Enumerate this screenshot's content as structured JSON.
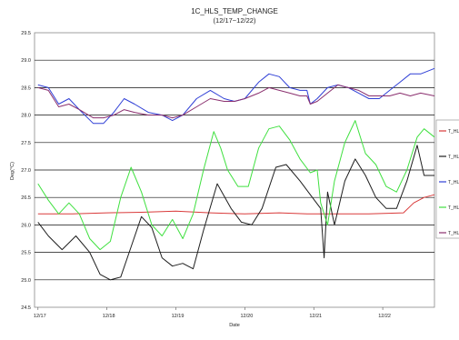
{
  "chart_data": {
    "type": "line",
    "title": "1C_HLS_TEMP_CHANGE",
    "subtitle": "(12/17~12/22)",
    "xlabel": "Date",
    "ylabel": "Deg(°C)",
    "x_tick_labels": [
      "12/17",
      "12/18",
      "12/19",
      "12/20",
      "12/21",
      "12/22"
    ],
    "x_ticks": [
      0,
      1,
      2,
      3,
      4,
      5
    ],
    "xlim": [
      -0.05,
      5.75
    ],
    "ylim": [
      24.5,
      29.5
    ],
    "y_ticks": [
      "24.5",
      "25.0",
      "25.5",
      "26.0",
      "26.5",
      "27.0",
      "27.5",
      "28.0",
      "28.5",
      "29.0",
      "29.5"
    ],
    "grid": "horizontal",
    "legend_position": "right",
    "series": [
      {
        "name": "T_HLS",
        "color": "#d93a3a",
        "points": [
          [
            0.0,
            26.2
          ],
          [
            0.5,
            26.2
          ],
          [
            1.0,
            26.22
          ],
          [
            1.5,
            26.23
          ],
          [
            2.0,
            26.25
          ],
          [
            2.5,
            26.22
          ],
          [
            3.0,
            26.2
          ],
          [
            3.5,
            26.22
          ],
          [
            3.9,
            26.2
          ],
          [
            4.3,
            26.2
          ],
          [
            4.8,
            26.2
          ],
          [
            5.3,
            26.22
          ],
          [
            5.45,
            26.4
          ],
          [
            5.6,
            26.5
          ],
          [
            5.75,
            26.55
          ]
        ]
      },
      {
        "name": "T_HLS",
        "color": "#1e1e1e",
        "points": [
          [
            0.0,
            26.05
          ],
          [
            0.15,
            25.8
          ],
          [
            0.35,
            25.55
          ],
          [
            0.55,
            25.8
          ],
          [
            0.75,
            25.5
          ],
          [
            0.9,
            25.1
          ],
          [
            1.05,
            25.0
          ],
          [
            1.2,
            25.05
          ],
          [
            1.35,
            25.6
          ],
          [
            1.5,
            26.15
          ],
          [
            1.65,
            25.95
          ],
          [
            1.8,
            25.4
          ],
          [
            1.95,
            25.25
          ],
          [
            2.1,
            25.3
          ],
          [
            2.25,
            25.2
          ],
          [
            2.4,
            25.9
          ],
          [
            2.6,
            26.75
          ],
          [
            2.8,
            26.3
          ],
          [
            2.95,
            26.05
          ],
          [
            3.1,
            26.0
          ],
          [
            3.25,
            26.3
          ],
          [
            3.45,
            27.05
          ],
          [
            3.6,
            27.1
          ],
          [
            3.8,
            26.8
          ],
          [
            3.95,
            26.55
          ],
          [
            4.1,
            26.3
          ],
          [
            4.15,
            25.4
          ],
          [
            4.2,
            26.6
          ],
          [
            4.3,
            26.0
          ],
          [
            4.45,
            26.8
          ],
          [
            4.6,
            27.2
          ],
          [
            4.75,
            26.9
          ],
          [
            4.9,
            26.5
          ],
          [
            5.05,
            26.3
          ],
          [
            5.2,
            26.3
          ],
          [
            5.35,
            26.8
          ],
          [
            5.5,
            27.45
          ],
          [
            5.6,
            26.9
          ],
          [
            5.75,
            26.9
          ]
        ]
      },
      {
        "name": "T_HLS",
        "color": "#2f3fd6",
        "points": [
          [
            0.0,
            28.55
          ],
          [
            0.15,
            28.5
          ],
          [
            0.3,
            28.2
          ],
          [
            0.45,
            28.3
          ],
          [
            0.6,
            28.1
          ],
          [
            0.8,
            27.85
          ],
          [
            0.95,
            27.85
          ],
          [
            1.1,
            28.05
          ],
          [
            1.25,
            28.3
          ],
          [
            1.4,
            28.2
          ],
          [
            1.6,
            28.05
          ],
          [
            1.8,
            28.0
          ],
          [
            1.95,
            27.9
          ],
          [
            2.1,
            28.0
          ],
          [
            2.3,
            28.3
          ],
          [
            2.5,
            28.45
          ],
          [
            2.7,
            28.3
          ],
          [
            2.85,
            28.25
          ],
          [
            3.0,
            28.3
          ],
          [
            3.2,
            28.6
          ],
          [
            3.35,
            28.75
          ],
          [
            3.5,
            28.7
          ],
          [
            3.65,
            28.5
          ],
          [
            3.8,
            28.45
          ],
          [
            3.9,
            28.45
          ],
          [
            3.95,
            28.2
          ],
          [
            4.05,
            28.3
          ],
          [
            4.2,
            28.5
          ],
          [
            4.35,
            28.55
          ],
          [
            4.5,
            28.5
          ],
          [
            4.65,
            28.4
          ],
          [
            4.8,
            28.3
          ],
          [
            4.95,
            28.3
          ],
          [
            5.1,
            28.45
          ],
          [
            5.25,
            28.6
          ],
          [
            5.4,
            28.75
          ],
          [
            5.55,
            28.75
          ],
          [
            5.75,
            28.85
          ]
        ]
      },
      {
        "name": "T_HLS",
        "color": "#3fe03f",
        "points": [
          [
            0.0,
            26.75
          ],
          [
            0.15,
            26.45
          ],
          [
            0.3,
            26.2
          ],
          [
            0.45,
            26.4
          ],
          [
            0.6,
            26.2
          ],
          [
            0.75,
            25.75
          ],
          [
            0.9,
            25.55
          ],
          [
            1.05,
            25.7
          ],
          [
            1.2,
            26.5
          ],
          [
            1.35,
            27.05
          ],
          [
            1.5,
            26.6
          ],
          [
            1.65,
            26.0
          ],
          [
            1.8,
            25.8
          ],
          [
            1.95,
            26.1
          ],
          [
            2.1,
            25.75
          ],
          [
            2.25,
            26.2
          ],
          [
            2.4,
            27.0
          ],
          [
            2.55,
            27.7
          ],
          [
            2.65,
            27.4
          ],
          [
            2.75,
            27.0
          ],
          [
            2.9,
            26.7
          ],
          [
            3.05,
            26.7
          ],
          [
            3.2,
            27.4
          ],
          [
            3.35,
            27.75
          ],
          [
            3.5,
            27.8
          ],
          [
            3.65,
            27.55
          ],
          [
            3.8,
            27.2
          ],
          [
            3.95,
            26.95
          ],
          [
            4.05,
            27.0
          ],
          [
            4.1,
            26.4
          ],
          [
            4.2,
            26.0
          ],
          [
            4.3,
            26.8
          ],
          [
            4.45,
            27.5
          ],
          [
            4.6,
            27.9
          ],
          [
            4.75,
            27.3
          ],
          [
            4.9,
            27.1
          ],
          [
            5.05,
            26.7
          ],
          [
            5.2,
            26.6
          ],
          [
            5.35,
            27.0
          ],
          [
            5.5,
            27.6
          ],
          [
            5.6,
            27.75
          ],
          [
            5.75,
            27.6
          ]
        ]
      },
      {
        "name": "T_HLS",
        "color": "#8a2f6e",
        "points": [
          [
            0.0,
            28.5
          ],
          [
            0.15,
            28.45
          ],
          [
            0.3,
            28.15
          ],
          [
            0.45,
            28.2
          ],
          [
            0.6,
            28.1
          ],
          [
            0.8,
            27.95
          ],
          [
            0.95,
            27.95
          ],
          [
            1.1,
            28.0
          ],
          [
            1.25,
            28.1
          ],
          [
            1.4,
            28.05
          ],
          [
            1.6,
            28.0
          ],
          [
            1.8,
            28.0
          ],
          [
            1.95,
            27.95
          ],
          [
            2.1,
            28.0
          ],
          [
            2.3,
            28.15
          ],
          [
            2.5,
            28.3
          ],
          [
            2.7,
            28.25
          ],
          [
            2.85,
            28.25
          ],
          [
            3.0,
            28.3
          ],
          [
            3.2,
            28.4
          ],
          [
            3.35,
            28.5
          ],
          [
            3.5,
            28.45
          ],
          [
            3.65,
            28.4
          ],
          [
            3.8,
            28.35
          ],
          [
            3.9,
            28.35
          ],
          [
            3.95,
            28.2
          ],
          [
            4.05,
            28.25
          ],
          [
            4.2,
            28.4
          ],
          [
            4.35,
            28.55
          ],
          [
            4.5,
            28.5
          ],
          [
            4.65,
            28.45
          ],
          [
            4.8,
            28.35
          ],
          [
            4.95,
            28.35
          ],
          [
            5.1,
            28.35
          ],
          [
            5.25,
            28.4
          ],
          [
            5.4,
            28.35
          ],
          [
            5.55,
            28.4
          ],
          [
            5.75,
            28.35
          ]
        ]
      }
    ]
  }
}
